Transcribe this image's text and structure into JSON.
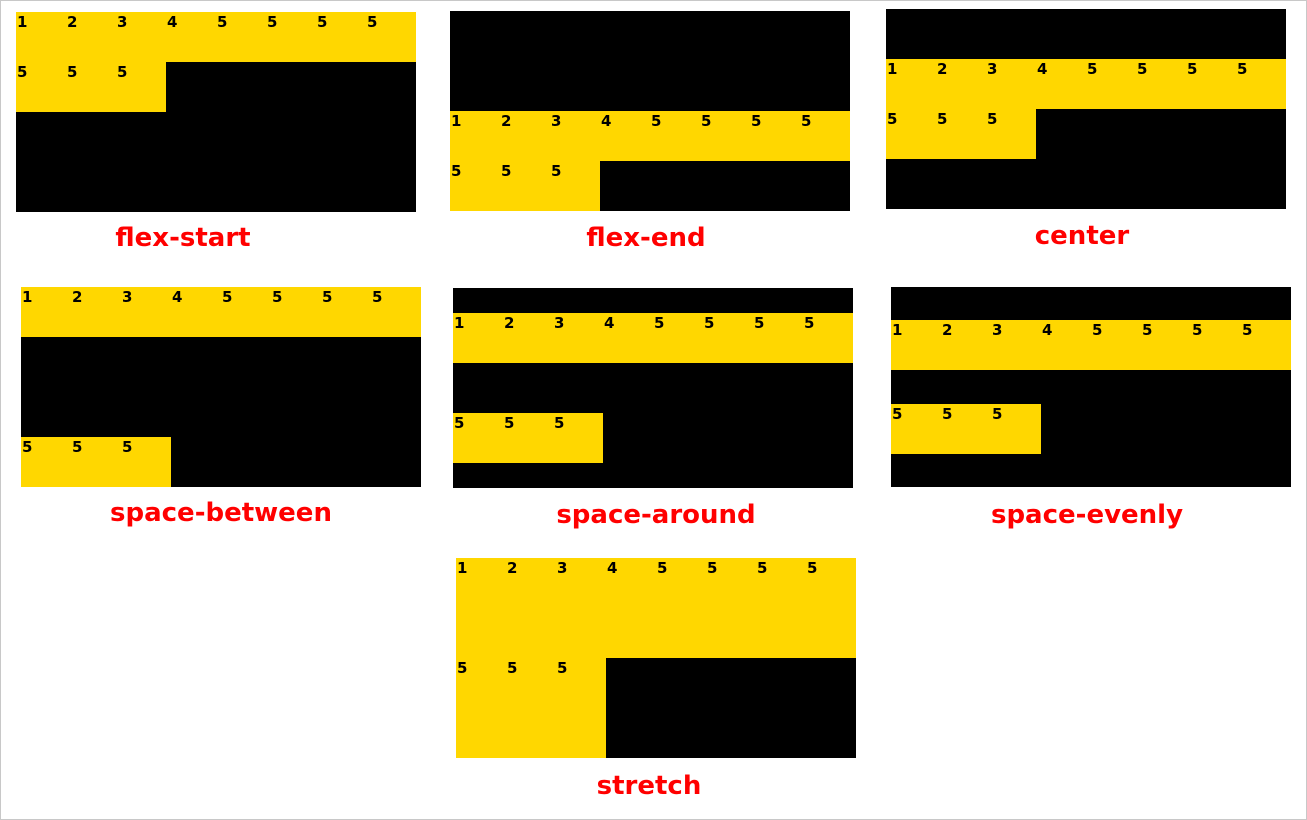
{
  "colors": {
    "container": "#000000",
    "item": "#FFD700",
    "item_text": "#000000",
    "caption": "#ff0000"
  },
  "item_labels": [
    "1",
    "2",
    "3",
    "4",
    "5",
    "5",
    "5",
    "5",
    "5",
    "5",
    "5"
  ],
  "demos": [
    {
      "id": "flex-start",
      "align_content": "flex-start",
      "caption": "flex-start"
    },
    {
      "id": "flex-end",
      "align_content": "flex-end",
      "caption": "flex-end"
    },
    {
      "id": "center",
      "align_content": "center",
      "caption": "center"
    },
    {
      "id": "space-between",
      "align_content": "space-between",
      "caption": "space-between"
    },
    {
      "id": "space-around",
      "align_content": "space-around",
      "caption": "space-around"
    },
    {
      "id": "space-evenly",
      "align_content": "space-evenly",
      "caption": "space-evenly"
    },
    {
      "id": "stretch",
      "align_content": "stretch",
      "caption": "stretch"
    }
  ]
}
